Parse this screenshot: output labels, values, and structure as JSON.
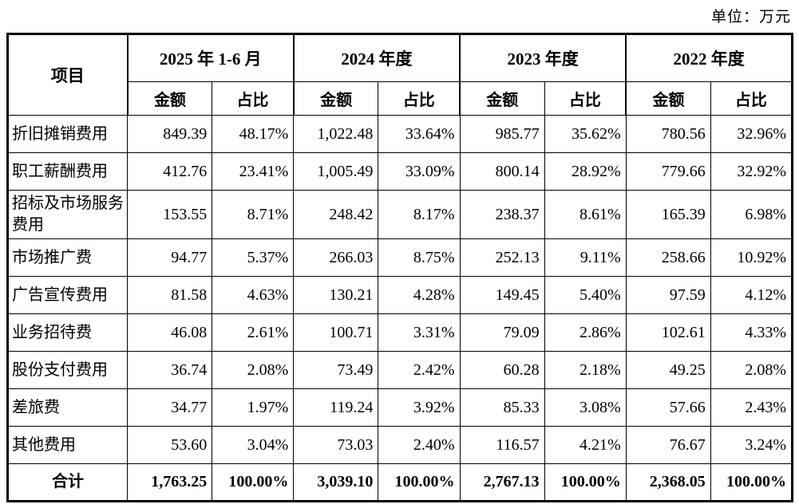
{
  "unit_label": "单位：万元",
  "table": {
    "item_header": "项目",
    "amount_header": "金额",
    "ratio_header": "占比",
    "periods": [
      "2025 年 1-6 月",
      "2024 年度",
      "2023 年度",
      "2022 年度"
    ],
    "rows": [
      {
        "label": "折旧摊销费用",
        "values": [
          "849.39",
          "48.17%",
          "1,022.48",
          "33.64%",
          "985.77",
          "35.62%",
          "780.56",
          "32.96%"
        ]
      },
      {
        "label": "职工薪酬费用",
        "values": [
          "412.76",
          "23.41%",
          "1,005.49",
          "33.09%",
          "800.14",
          "28.92%",
          "779.66",
          "32.92%"
        ]
      },
      {
        "label": "招标及市场服务费用",
        "values": [
          "153.55",
          "8.71%",
          "248.42",
          "8.17%",
          "238.37",
          "8.61%",
          "165.39",
          "6.98%"
        ]
      },
      {
        "label": "市场推广费",
        "values": [
          "94.77",
          "5.37%",
          "266.03",
          "8.75%",
          "252.13",
          "9.11%",
          "258.66",
          "10.92%"
        ]
      },
      {
        "label": "广告宣传费用",
        "values": [
          "81.58",
          "4.63%",
          "130.21",
          "4.28%",
          "149.45",
          "5.40%",
          "97.59",
          "4.12%"
        ]
      },
      {
        "label": "业务招待费",
        "values": [
          "46.08",
          "2.61%",
          "100.71",
          "3.31%",
          "79.09",
          "2.86%",
          "102.61",
          "4.33%"
        ]
      },
      {
        "label": "股份支付费用",
        "values": [
          "36.74",
          "2.08%",
          "73.49",
          "2.42%",
          "60.28",
          "2.18%",
          "49.25",
          "2.08%"
        ]
      },
      {
        "label": "差旅费",
        "values": [
          "34.77",
          "1.97%",
          "119.24",
          "3.92%",
          "85.33",
          "3.08%",
          "57.66",
          "2.43%"
        ]
      },
      {
        "label": "其他费用",
        "values": [
          "53.60",
          "3.04%",
          "73.03",
          "2.40%",
          "116.57",
          "4.21%",
          "76.67",
          "3.24%"
        ]
      }
    ],
    "total": {
      "label": "合计",
      "values": [
        "1,763.25",
        "100.00%",
        "3,039.10",
        "100.00%",
        "2,767.13",
        "100.00%",
        "2,368.05",
        "100.00%"
      ]
    }
  }
}
